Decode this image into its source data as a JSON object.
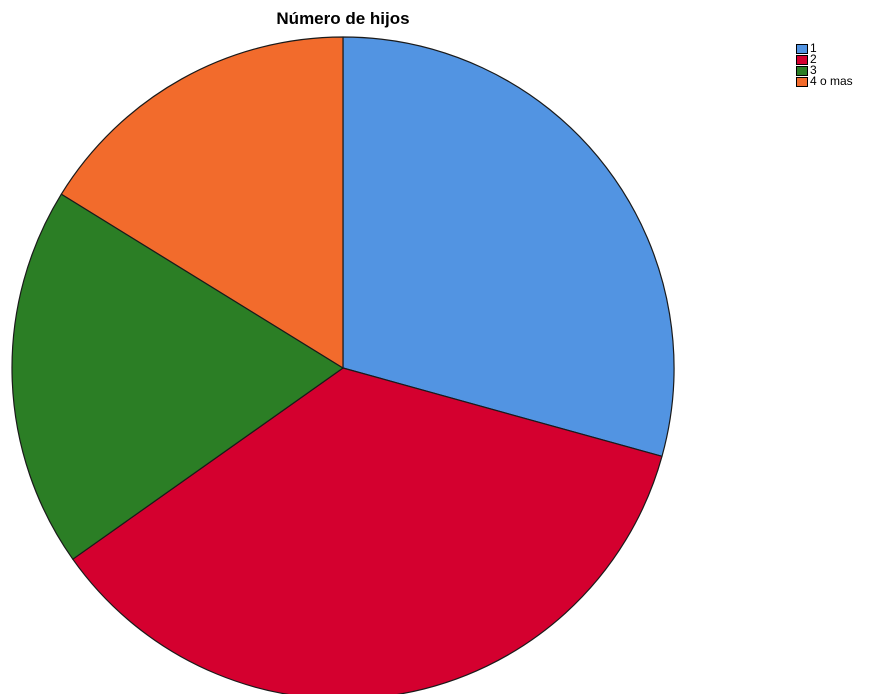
{
  "chart_data": {
    "type": "pie",
    "title": "Número de hijos",
    "categories": [
      "1",
      "2",
      "3",
      "4 o mas"
    ],
    "values": [
      29.3,
      35.9,
      18.6,
      16.2
    ],
    "colors": [
      "#5294E2",
      "#D4002F",
      "#2B7E25",
      "#F26B2C"
    ],
    "start_angle": "12 o'clock",
    "direction": "clockwise",
    "legend_position": "top-right"
  }
}
